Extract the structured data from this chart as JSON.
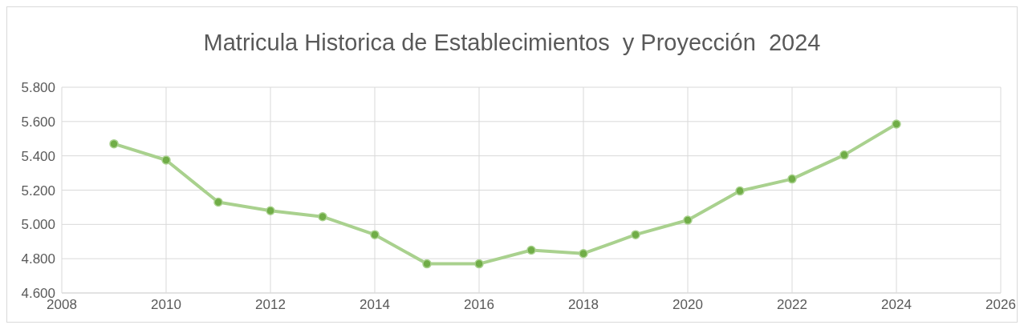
{
  "chart_data": {
    "type": "line",
    "title": "Matricula Historica de Establecimientos  y Proyección  2024",
    "x": [
      2009,
      2010,
      2011,
      2012,
      2013,
      2014,
      2015,
      2016,
      2017,
      2018,
      2019,
      2020,
      2021,
      2022,
      2023,
      2024
    ],
    "series": [
      {
        "color": "#a9d18e",
        "values": [
          5470,
          5375,
          5130,
          5080,
          5045,
          4940,
          4770,
          4770,
          4850,
          4830,
          4940,
          5025,
          5195,
          5265,
          5405,
          5585
        ]
      }
    ],
    "xlim": [
      2008,
      2026
    ],
    "xticks": [
      2008,
      2010,
      2012,
      2014,
      2016,
      2018,
      2020,
      2022,
      2024,
      2026
    ],
    "ylim": [
      4600,
      5800
    ],
    "yticks": [
      {
        "value": 4600,
        "label": "4.600"
      },
      {
        "value": 4800,
        "label": "4.800"
      },
      {
        "value": 5000,
        "label": "5.000"
      },
      {
        "value": 5200,
        "label": "5.200"
      },
      {
        "value": 5400,
        "label": "5.400"
      },
      {
        "value": 5600,
        "label": "5.600"
      },
      {
        "value": 5800,
        "label": "5.800"
      }
    ],
    "grid": true,
    "marker": "circle",
    "line_style": "solid"
  }
}
